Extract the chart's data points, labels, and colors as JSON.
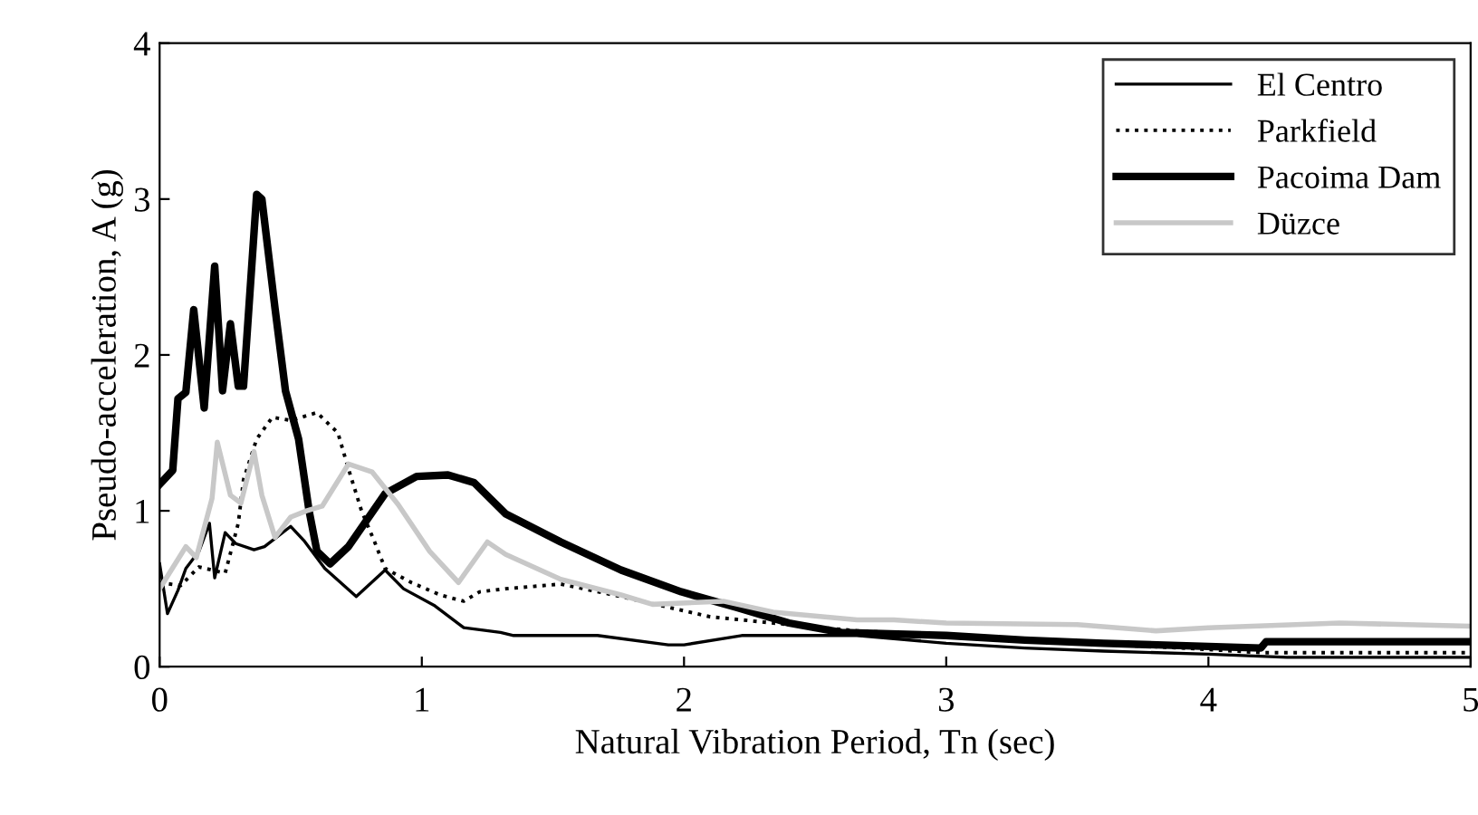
{
  "chart_data": {
    "type": "line",
    "xlabel": "Natural Vibration Period, Tn (sec)",
    "ylabel": "Pseudo-acceleration, A (g)",
    "xlim": [
      0,
      5
    ],
    "xticks": [
      0,
      1,
      2,
      3,
      4,
      5
    ],
    "ylim": [
      0,
      4
    ],
    "yticks": [
      0,
      1,
      2,
      3,
      4
    ],
    "grid": false,
    "legend": "top right",
    "marker": "none",
    "series": [
      {
        "name": "El Centro",
        "color": "#000000",
        "line_style": "solid",
        "x": [
          0,
          0.03,
          0.07,
          0.1,
          0.15,
          0.19,
          0.21,
          0.25,
          0.29,
          0.36,
          0.4,
          0.5,
          0.55,
          0.63,
          0.75,
          0.86,
          0.93,
          1.05,
          1.16,
          1.3,
          1.35,
          1.67,
          1.94,
          2.0,
          2.22,
          2.66,
          2.8,
          3.0,
          3.3,
          3.6,
          4.0,
          4.3,
          5.0
        ],
        "values": [
          0.66,
          0.34,
          0.49,
          0.63,
          0.74,
          0.92,
          0.57,
          0.86,
          0.79,
          0.75,
          0.77,
          0.9,
          0.81,
          0.63,
          0.45,
          0.62,
          0.5,
          0.39,
          0.25,
          0.22,
          0.2,
          0.2,
          0.14,
          0.14,
          0.2,
          0.2,
          0.18,
          0.15,
          0.12,
          0.1,
          0.08,
          0.06,
          0.06
        ]
      },
      {
        "name": "Parkfield",
        "color": "#000000",
        "line_style": "dotted",
        "x": [
          0,
          0.08,
          0.15,
          0.25,
          0.3,
          0.32,
          0.37,
          0.43,
          0.5,
          0.6,
          0.68,
          0.72,
          0.77,
          0.82,
          0.86,
          0.96,
          1.07,
          1.16,
          1.22,
          1.32,
          1.53,
          1.76,
          2.1,
          2.4,
          2.66,
          3.0,
          3.5,
          3.9,
          4.2,
          5.0
        ],
        "values": [
          0.54,
          0.52,
          0.64,
          0.6,
          0.92,
          1.2,
          1.46,
          1.6,
          1.58,
          1.63,
          1.5,
          1.27,
          1.0,
          0.8,
          0.63,
          0.54,
          0.46,
          0.42,
          0.48,
          0.5,
          0.53,
          0.45,
          0.32,
          0.27,
          0.23,
          0.2,
          0.15,
          0.12,
          0.09,
          0.09
        ]
      },
      {
        "name": "Pacoima Dam",
        "color": "#000000",
        "line_style": "solid",
        "x": [
          0,
          0.05,
          0.07,
          0.1,
          0.13,
          0.17,
          0.21,
          0.24,
          0.27,
          0.3,
          0.32,
          0.37,
          0.39,
          0.44,
          0.48,
          0.53,
          0.57,
          0.6,
          0.65,
          0.72,
          0.86,
          0.98,
          1.1,
          1.2,
          1.32,
          1.53,
          1.76,
          1.99,
          2.2,
          2.4,
          2.6,
          3.0,
          3.3,
          3.6,
          4.0,
          4.2,
          4.22,
          5.0
        ],
        "values": [
          1.17,
          1.26,
          1.72,
          1.76,
          2.29,
          1.66,
          2.57,
          1.77,
          2.2,
          1.8,
          1.8,
          3.03,
          3.0,
          2.3,
          1.77,
          1.46,
          1.0,
          0.74,
          0.66,
          0.77,
          1.11,
          1.22,
          1.23,
          1.18,
          0.98,
          0.8,
          0.62,
          0.48,
          0.38,
          0.28,
          0.22,
          0.2,
          0.17,
          0.15,
          0.13,
          0.12,
          0.16,
          0.16
        ]
      },
      {
        "name": "Düzce",
        "color": "#c8c8c8",
        "line_style": "solid",
        "x": [
          0,
          0.1,
          0.14,
          0.2,
          0.22,
          0.27,
          0.31,
          0.36,
          0.39,
          0.44,
          0.5,
          0.56,
          0.62,
          0.72,
          0.81,
          0.91,
          1.03,
          1.14,
          1.25,
          1.32,
          1.53,
          1.76,
          1.88,
          2.15,
          2.34,
          2.66,
          2.8,
          3.0,
          3.5,
          3.8,
          4.0,
          4.5,
          5.0
        ],
        "values": [
          0.5,
          0.77,
          0.7,
          1.08,
          1.44,
          1.1,
          1.05,
          1.38,
          1.1,
          0.83,
          0.96,
          1.0,
          1.03,
          1.3,
          1.25,
          1.04,
          0.74,
          0.54,
          0.8,
          0.72,
          0.56,
          0.46,
          0.4,
          0.42,
          0.35,
          0.3,
          0.3,
          0.28,
          0.27,
          0.23,
          0.25,
          0.28,
          0.26
        ]
      }
    ]
  }
}
